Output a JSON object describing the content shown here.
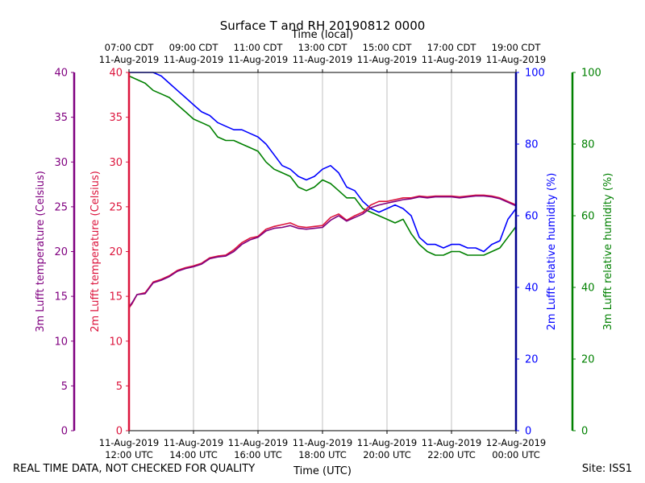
{
  "chart_data": {
    "type": "line",
    "title": "Surface T and RH 20190812 0000",
    "top_axis_title": "Time (local)",
    "xlabel": "Time (UTC)",
    "x_hours_utc": [
      12,
      24
    ],
    "x_ticks_utc": [
      12,
      14,
      16,
      18,
      20,
      22,
      24
    ],
    "bottom_tick_labels": [
      {
        "date": "11-Aug-2019",
        "time": "12:00 UTC"
      },
      {
        "date": "11-Aug-2019",
        "time": "14:00 UTC"
      },
      {
        "date": "11-Aug-2019",
        "time": "16:00 UTC"
      },
      {
        "date": "11-Aug-2019",
        "time": "18:00 UTC"
      },
      {
        "date": "11-Aug-2019",
        "time": "20:00 UTC"
      },
      {
        "date": "11-Aug-2019",
        "time": "22:00 UTC"
      },
      {
        "date": "12-Aug-2019",
        "time": "00:00 UTC"
      }
    ],
    "top_tick_labels": [
      {
        "time": "07:00 CDT",
        "date": "11-Aug-2019"
      },
      {
        "time": "09:00 CDT",
        "date": "11-Aug-2019"
      },
      {
        "time": "11:00 CDT",
        "date": "11-Aug-2019"
      },
      {
        "time": "13:00 CDT",
        "date": "11-Aug-2019"
      },
      {
        "time": "15:00 CDT",
        "date": "11-Aug-2019"
      },
      {
        "time": "17:00 CDT",
        "date": "11-Aug-2019"
      },
      {
        "time": "19:00 CDT",
        "date": "11-Aug-2019"
      }
    ],
    "axes": {
      "t3": {
        "label": "3m Lufft temperature (Celsius)",
        "range": [
          0,
          40
        ],
        "ticks": [
          0,
          5,
          10,
          15,
          20,
          25,
          30,
          35,
          40
        ],
        "color": "#800080"
      },
      "t2": {
        "label": "2m Lufft temperature (Celsius)",
        "range": [
          0,
          40
        ],
        "ticks": [
          0,
          5,
          10,
          15,
          20,
          25,
          30,
          35,
          40
        ],
        "color": "#dc143c"
      },
      "rh2": {
        "label": "2m Lufft relative humidity (%)",
        "range": [
          0,
          100
        ],
        "ticks": [
          0,
          20,
          40,
          60,
          80,
          100
        ],
        "color": "#0000ff"
      },
      "rh3": {
        "label": "3m Lufft relative humidity (%)",
        "range": [
          0,
          100
        ],
        "ticks": [
          0,
          20,
          40,
          60,
          80,
          100
        ],
        "color": "#008000"
      }
    },
    "series": [
      {
        "name": "2m Lufft temperature",
        "axis": "t2",
        "color": "#dc143c",
        "x": [
          12.0,
          12.1,
          12.25,
          12.5,
          12.75,
          13.0,
          13.25,
          13.5,
          13.75,
          14.0,
          14.25,
          14.5,
          14.75,
          15.0,
          15.25,
          15.5,
          15.75,
          16.0,
          16.25,
          16.5,
          16.75,
          17.0,
          17.25,
          17.5,
          17.75,
          18.0,
          18.25,
          18.5,
          18.75,
          19.0,
          19.25,
          19.5,
          19.75,
          20.0,
          20.25,
          20.5,
          20.75,
          21.0,
          21.25,
          21.5,
          21.75,
          22.0,
          22.25,
          22.5,
          22.75,
          23.0,
          23.25,
          23.5,
          23.75,
          24.0
        ],
        "values": [
          13.7,
          14.2,
          15.2,
          15.4,
          16.6,
          16.9,
          17.3,
          17.9,
          18.2,
          18.4,
          18.7,
          19.3,
          19.5,
          19.6,
          20.2,
          21.0,
          21.5,
          21.7,
          22.5,
          22.8,
          23.0,
          23.2,
          22.8,
          22.7,
          22.8,
          22.9,
          23.8,
          24.2,
          23.5,
          24.0,
          24.4,
          25.2,
          25.6,
          25.6,
          25.8,
          26.0,
          26.0,
          26.2,
          26.1,
          26.2,
          26.2,
          26.2,
          26.1,
          26.2,
          26.3,
          26.3,
          26.2,
          26.0,
          25.6,
          25.2
        ]
      },
      {
        "name": "3m Lufft temperature",
        "axis": "t3",
        "color": "#800080",
        "x": [
          12.0,
          12.1,
          12.25,
          12.5,
          12.75,
          13.0,
          13.25,
          13.5,
          13.75,
          14.0,
          14.25,
          14.5,
          14.75,
          15.0,
          15.25,
          15.5,
          15.75,
          16.0,
          16.25,
          16.5,
          16.75,
          17.0,
          17.25,
          17.5,
          17.75,
          18.0,
          18.25,
          18.5,
          18.75,
          19.0,
          19.25,
          19.5,
          19.75,
          20.0,
          20.25,
          20.5,
          20.75,
          21.0,
          21.25,
          21.5,
          21.75,
          22.0,
          22.25,
          22.5,
          22.75,
          23.0,
          23.25,
          23.5,
          23.75,
          24.0
        ],
        "values": [
          13.8,
          14.3,
          15.2,
          15.3,
          16.5,
          16.8,
          17.2,
          17.8,
          18.1,
          18.3,
          18.6,
          19.2,
          19.4,
          19.5,
          20.0,
          20.8,
          21.3,
          21.6,
          22.3,
          22.6,
          22.7,
          22.9,
          22.6,
          22.5,
          22.6,
          22.7,
          23.5,
          24.0,
          23.4,
          23.8,
          24.2,
          24.9,
          25.2,
          25.4,
          25.6,
          25.8,
          25.9,
          26.1,
          26.0,
          26.1,
          26.1,
          26.1,
          26.0,
          26.1,
          26.2,
          26.2,
          26.1,
          25.9,
          25.5,
          25.1
        ]
      },
      {
        "name": "2m Lufft relative humidity",
        "axis": "rh2",
        "color": "#0000ff",
        "x": [
          12.0,
          12.25,
          12.5,
          12.75,
          13.0,
          13.25,
          13.5,
          13.75,
          14.0,
          14.25,
          14.5,
          14.75,
          15.0,
          15.25,
          15.5,
          15.75,
          16.0,
          16.25,
          16.5,
          16.75,
          17.0,
          17.25,
          17.5,
          17.75,
          18.0,
          18.25,
          18.5,
          18.75,
          19.0,
          19.25,
          19.5,
          19.75,
          20.0,
          20.25,
          20.5,
          20.75,
          21.0,
          21.25,
          21.5,
          21.75,
          22.0,
          22.25,
          22.5,
          22.75,
          23.0,
          23.25,
          23.5,
          23.75,
          24.0
        ],
        "values": [
          100,
          100,
          100,
          100,
          99,
          97,
          95,
          93,
          91,
          89,
          88,
          86,
          85,
          84,
          84,
          83,
          82,
          80,
          77,
          74,
          73,
          71,
          70,
          71,
          73,
          74,
          72,
          68,
          67,
          64,
          62,
          61,
          62,
          63,
          62,
          60,
          54,
          52,
          52,
          51,
          52,
          52,
          51,
          51,
          50,
          52,
          53,
          59,
          62
        ]
      },
      {
        "name": "3m Lufft relative humidity",
        "axis": "rh3",
        "color": "#008000",
        "x": [
          12.0,
          12.25,
          12.5,
          12.75,
          13.0,
          13.25,
          13.5,
          13.75,
          14.0,
          14.25,
          14.5,
          14.75,
          15.0,
          15.25,
          15.5,
          15.75,
          16.0,
          16.25,
          16.5,
          16.75,
          17.0,
          17.25,
          17.5,
          17.75,
          18.0,
          18.25,
          18.5,
          18.75,
          19.0,
          19.25,
          19.5,
          19.75,
          20.0,
          20.25,
          20.5,
          20.75,
          21.0,
          21.25,
          21.5,
          21.75,
          22.0,
          22.25,
          22.5,
          22.75,
          23.0,
          23.25,
          23.5,
          23.75,
          24.0
        ],
        "values": [
          99,
          98,
          97,
          95,
          94,
          93,
          91,
          89,
          87,
          86,
          85,
          82,
          81,
          81,
          80,
          79,
          78,
          75,
          73,
          72,
          71,
          68,
          67,
          68,
          70,
          69,
          67,
          65,
          65,
          62,
          61,
          60,
          59,
          58,
          59,
          55,
          52,
          50,
          49,
          49,
          50,
          50,
          49,
          49,
          49,
          50,
          51,
          54,
          57
        ]
      }
    ],
    "grid": "vertical"
  },
  "footer": {
    "left": "REAL TIME DATA, NOT CHECKED FOR QUALITY",
    "right": "Site: ISS1"
  }
}
